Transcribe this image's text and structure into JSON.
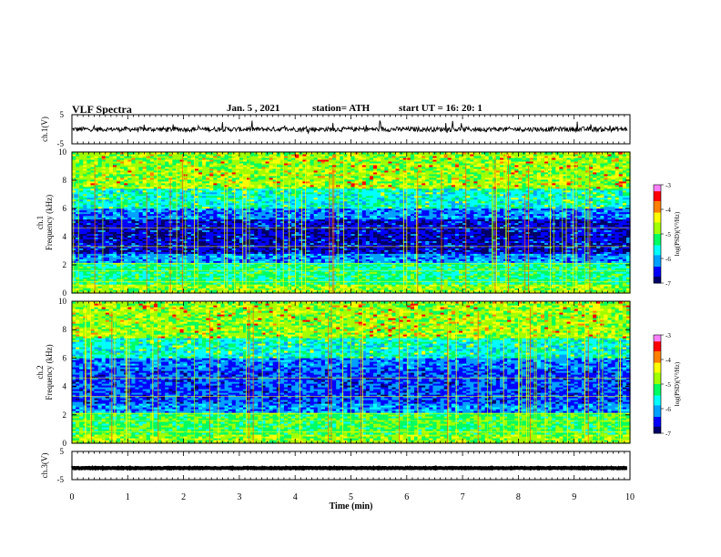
{
  "header": {
    "title": "VLF Spectra",
    "date": "Jan. 5 , 2021",
    "station": "station= ATH",
    "start": "start UT =   16: 20: 1"
  },
  "chart_data": {
    "type": "heatmap",
    "x_axis": {
      "label": "Time (min)",
      "range": [
        0,
        10
      ],
      "ticks": [
        "0",
        "1",
        "2",
        "3",
        "4",
        "5",
        "6",
        "7",
        "8",
        "9",
        "10"
      ]
    },
    "panels": [
      {
        "kind": "waveform",
        "ylabel": "ch.1(V)",
        "yrange": [
          -5,
          5
        ],
        "ytick_labels": [
          "5",
          "-5"
        ],
        "description_trace": "noisy signal around 0 V, roughly -2 to 2 V"
      },
      {
        "kind": "spectrogram",
        "ylabel_line1": "ch.1",
        "ylabel_line2": "Frequency (kHz)",
        "yrange": [
          0,
          10
        ],
        "ytick_labels": [
          "0",
          "2",
          "4",
          "6",
          "8",
          "10"
        ],
        "colorbar": {
          "label": "log(PSD)(V²/Hz)",
          "range": [
            -7,
            -3
          ],
          "tick_labels": [
            "-3",
            "-4",
            "-5",
            "-6",
            "-7"
          ]
        }
      },
      {
        "kind": "spectrogram",
        "ylabel_line1": "ch.2",
        "ylabel_line2": "Frequency (kHz)",
        "yrange": [
          0,
          10
        ],
        "ytick_labels": [
          "0",
          "2",
          "4",
          "6",
          "8",
          "10"
        ],
        "colorbar": {
          "label": "log(PSD)(V²/Hz)",
          "range": [
            -7,
            -3
          ],
          "tick_labels": [
            "-3",
            "-4",
            "-5",
            "-6",
            "-7"
          ]
        }
      },
      {
        "kind": "waveform",
        "ylabel": "ch.3(V)",
        "yrange": [
          -5,
          5
        ],
        "ytick_labels": [
          "5",
          "-5"
        ],
        "description_trace": "flat thick trace near -1 V"
      }
    ],
    "colors": {
      "colormap": [
        "#000066",
        "#0000ff",
        "#00a0ff",
        "#00ffff",
        "#00ff60",
        "#a0ff00",
        "#ffff00",
        "#ff8000",
        "#ff0000",
        "#ff80ff"
      ]
    }
  }
}
